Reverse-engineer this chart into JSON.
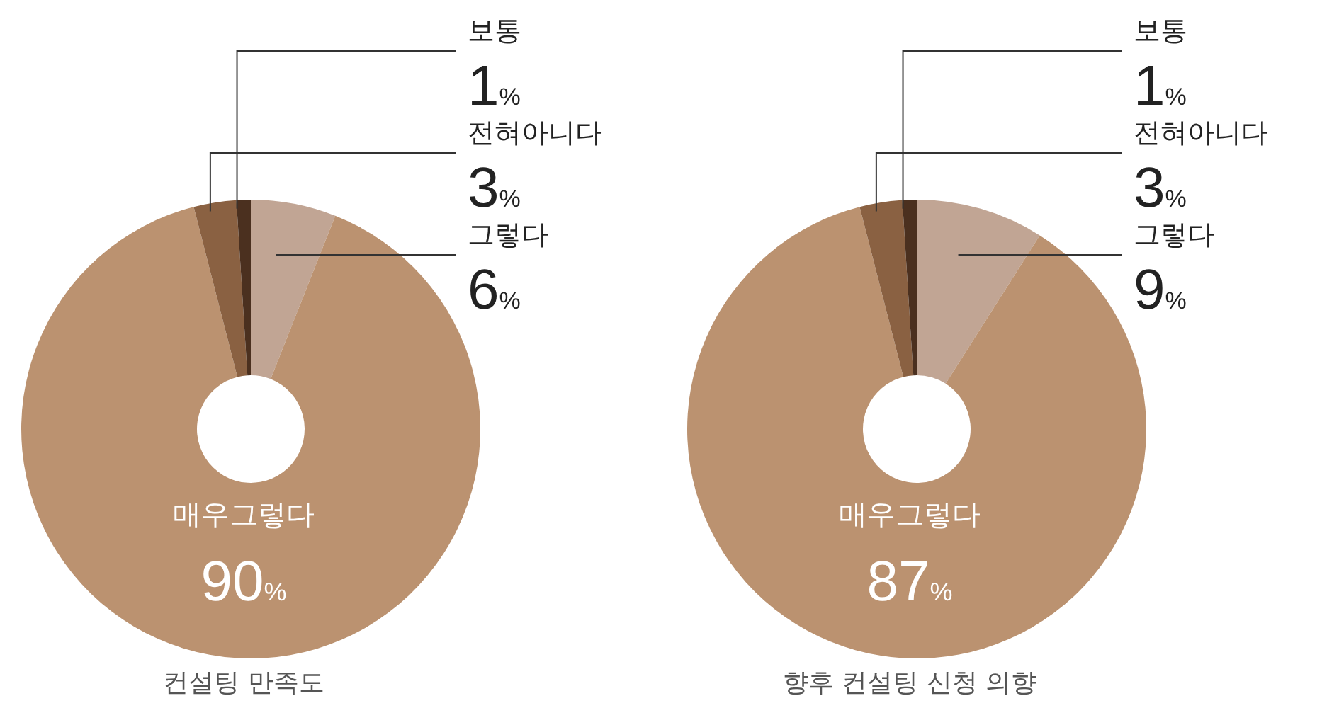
{
  "chart_data": [
    {
      "type": "donut",
      "title": "컨설팅 만족도",
      "categories": [
        "그렇다",
        "매우그렇다",
        "전혀아니다",
        "보통"
      ],
      "values": [
        6,
        90,
        3,
        1
      ],
      "colors": [
        "#c1a594",
        "#bb9270",
        "#8a6142",
        "#4b301f"
      ],
      "value_labels": [
        "6%",
        "90%",
        "3%",
        "1%"
      ],
      "legend": false
    },
    {
      "type": "donut",
      "title": "향후 컨설팅 신청 의향",
      "categories": [
        "그렇다",
        "매우그렇다",
        "전혀아니다",
        "보통"
      ],
      "values": [
        9,
        87,
        3,
        1
      ],
      "colors": [
        "#c1a594",
        "#bb9270",
        "#8a6142",
        "#4b301f"
      ],
      "value_labels": [
        "9%",
        "87%",
        "3%",
        "1%"
      ],
      "legend": false
    }
  ]
}
